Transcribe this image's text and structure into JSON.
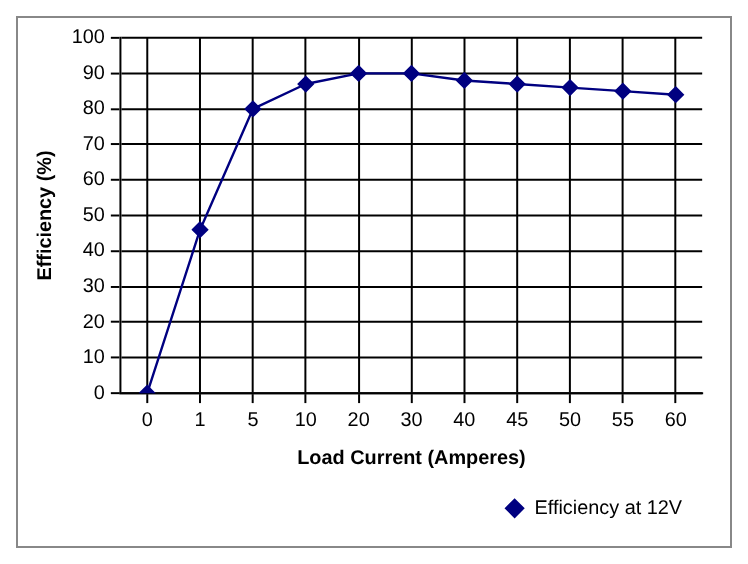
{
  "chart_data": {
    "type": "line",
    "xlabel": "Load Current (Amperes)",
    "ylabel": "Efficiency (%)",
    "categories": [
      "0",
      "1",
      "5",
      "10",
      "20",
      "30",
      "40",
      "45",
      "50",
      "55",
      "60"
    ],
    "series": [
      {
        "name": "Efficiency at 12V",
        "color": "#000080",
        "values": [
          0,
          46,
          80,
          87,
          90,
          90,
          88,
          87,
          86,
          85,
          84
        ]
      }
    ],
    "ylim": [
      0,
      100
    ],
    "yticks": [
      0,
      10,
      20,
      30,
      40,
      50,
      60,
      70,
      80,
      90,
      100
    ],
    "grid": true,
    "legend": "bottom right",
    "marker": "diamond",
    "line_style": "solid"
  }
}
